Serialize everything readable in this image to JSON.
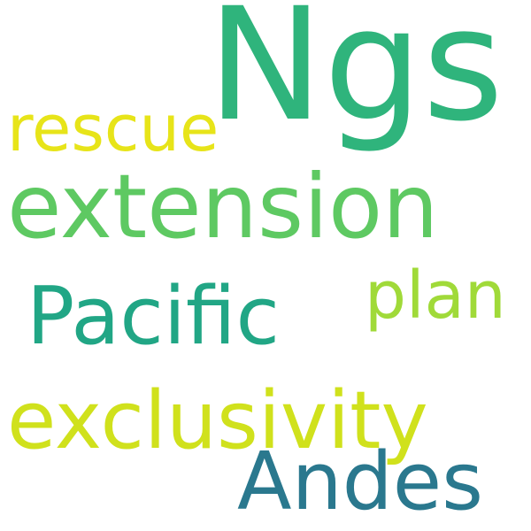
{
  "words": {
    "ngs": {
      "text": "Ngs",
      "color": "#2fb47c"
    },
    "extension": {
      "text": "extension",
      "color": "#5ec962"
    },
    "rescue": {
      "text": "rescue",
      "color": "#e7e419"
    },
    "pacific": {
      "text": "Pacific",
      "color": "#21a685"
    },
    "plan": {
      "text": "plan",
      "color": "#a0da39"
    },
    "exclusivity": {
      "text": "exclusivity",
      "color": "#d0e11c"
    },
    "andes": {
      "text": "Andes",
      "color": "#2a788e"
    }
  },
  "background": "#ffffff"
}
